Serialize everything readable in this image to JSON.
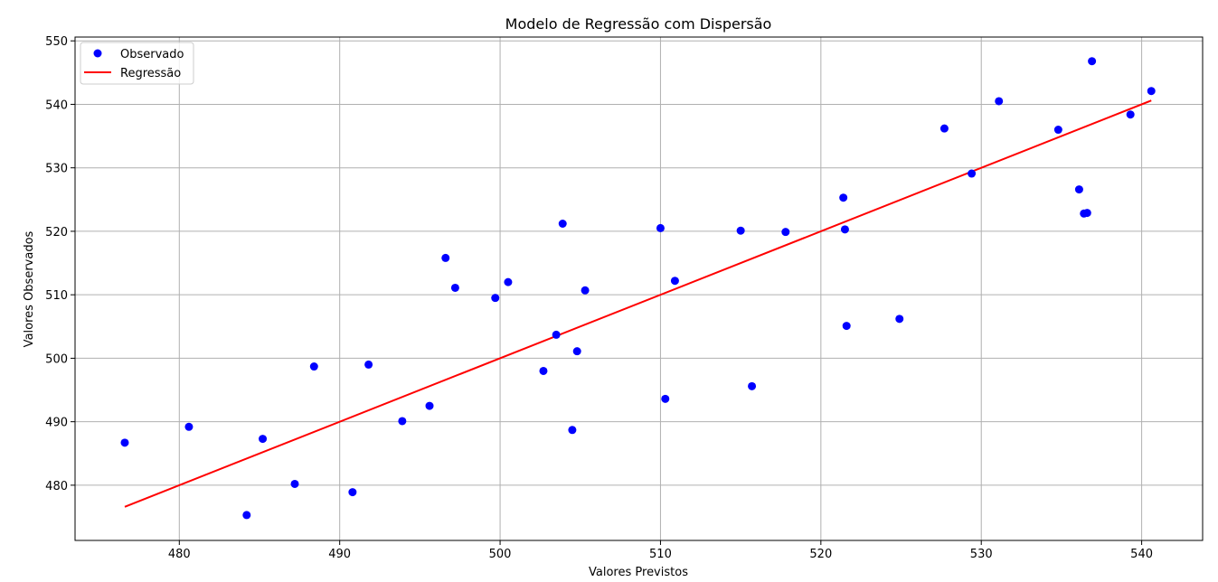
{
  "chart_data": {
    "type": "scatter",
    "title": "Modelo de Regressão com Dispersão",
    "xlabel": "Valores Previstos",
    "ylabel": "Valores Observados",
    "xlim": [
      473.5,
      543.8
    ],
    "ylim": [
      471.3,
      550.6
    ],
    "xticks": [
      480,
      490,
      500,
      510,
      520,
      530,
      540
    ],
    "yticks": [
      480,
      490,
      500,
      510,
      520,
      530,
      540,
      550
    ],
    "grid": true,
    "legend_position": "top-left",
    "series": [
      {
        "name": "Observado",
        "kind": "scatter",
        "color": "#0000ff",
        "points": [
          [
            476.6,
            486.7
          ],
          [
            480.6,
            489.2
          ],
          [
            484.2,
            475.3
          ],
          [
            485.2,
            487.3
          ],
          [
            487.2,
            480.2
          ],
          [
            488.4,
            498.7
          ],
          [
            490.8,
            478.9
          ],
          [
            491.8,
            499.0
          ],
          [
            493.9,
            490.1
          ],
          [
            495.6,
            492.5
          ],
          [
            496.6,
            515.8
          ],
          [
            497.2,
            511.1
          ],
          [
            499.7,
            509.5
          ],
          [
            500.5,
            512.0
          ],
          [
            502.7,
            498.0
          ],
          [
            503.5,
            503.7
          ],
          [
            503.9,
            521.2
          ],
          [
            504.5,
            488.7
          ],
          [
            504.8,
            501.1
          ],
          [
            505.3,
            510.7
          ],
          [
            510.0,
            520.5
          ],
          [
            510.3,
            493.6
          ],
          [
            510.9,
            512.2
          ],
          [
            515.0,
            520.1
          ],
          [
            515.7,
            495.6
          ],
          [
            517.8,
            519.9
          ],
          [
            521.4,
            525.3
          ],
          [
            521.5,
            520.3
          ],
          [
            521.6,
            505.1
          ],
          [
            524.9,
            506.2
          ],
          [
            527.7,
            536.2
          ],
          [
            529.4,
            529.1
          ],
          [
            531.1,
            540.5
          ],
          [
            534.8,
            536.0
          ],
          [
            536.1,
            526.6
          ],
          [
            536.4,
            522.8
          ],
          [
            536.6,
            522.9
          ],
          [
            536.9,
            546.8
          ],
          [
            539.3,
            538.4
          ],
          [
            540.6,
            542.1
          ]
        ]
      },
      {
        "name": "Regressão",
        "kind": "line",
        "color": "#ff0000",
        "points": [
          [
            476.6,
            476.6
          ],
          [
            540.6,
            540.6
          ]
        ]
      }
    ]
  }
}
